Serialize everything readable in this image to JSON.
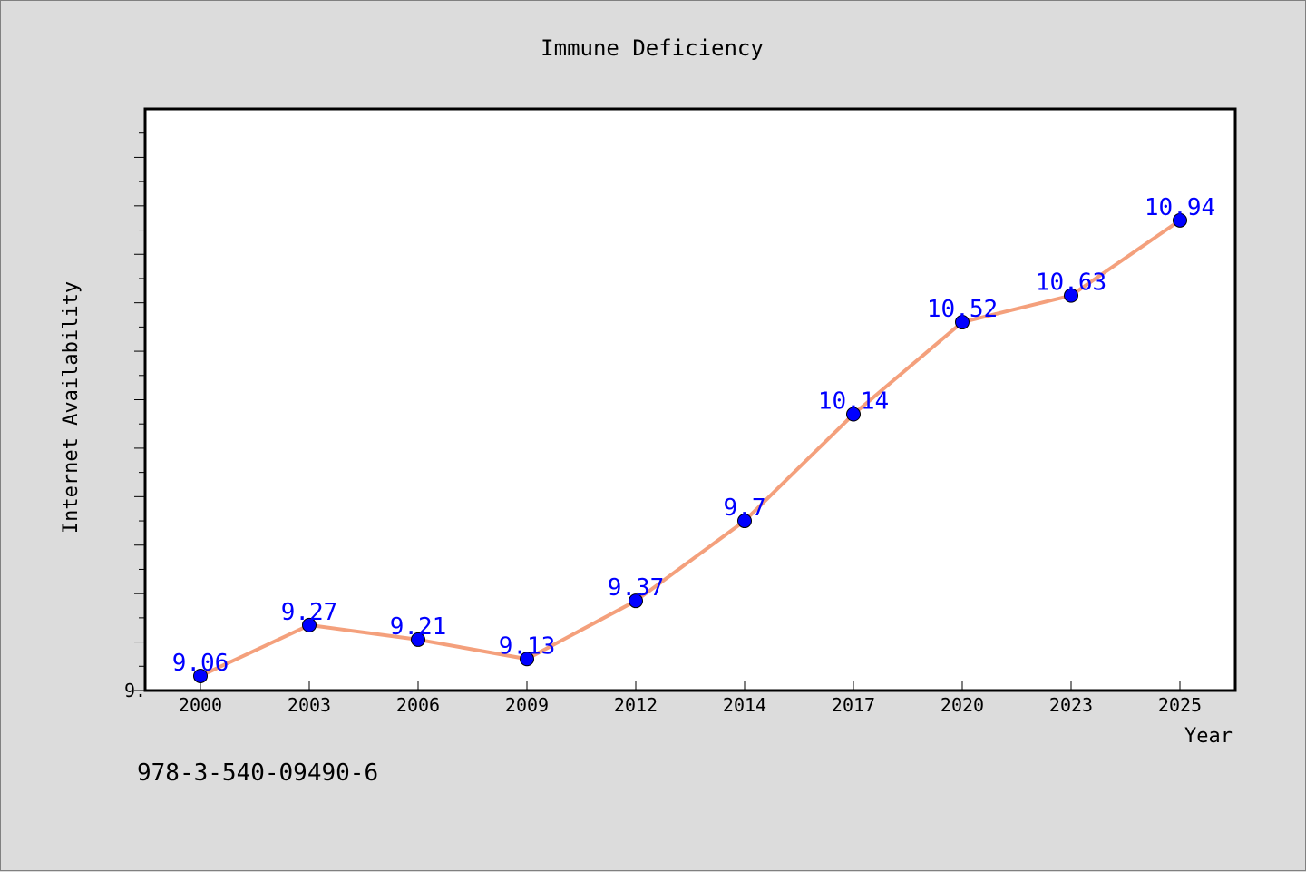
{
  "footer": {
    "code": "978-3-540-09490-6"
  },
  "colors": {
    "line": "#f4a07c",
    "marker": "#0000ff",
    "label": "#0000ff",
    "background": "#dcdcdc",
    "plot_background": "#ffffff"
  },
  "chart_data": {
    "type": "line",
    "title": "Immune Deficiency",
    "xlabel": "Year",
    "ylabel": "Internet Availability",
    "categories": [
      "2000",
      "2003",
      "2006",
      "2009",
      "2012",
      "2014",
      "2017",
      "2020",
      "2023",
      "2025"
    ],
    "series": [
      {
        "values": [
          9.06,
          9.27,
          9.21,
          9.13,
          9.37,
          9.7,
          10.14,
          10.52,
          10.63,
          10.94
        ],
        "labels": [
          "9.06",
          "9.27",
          "9.21",
          "9.13",
          "9.37",
          "9.7",
          "10.14",
          "10.52",
          "10.63",
          "10.94"
        ]
      }
    ],
    "y_tick_labels": [
      "9."
    ],
    "ylim": [
      9.0,
      11.4
    ],
    "grid": false,
    "legend": "none"
  }
}
